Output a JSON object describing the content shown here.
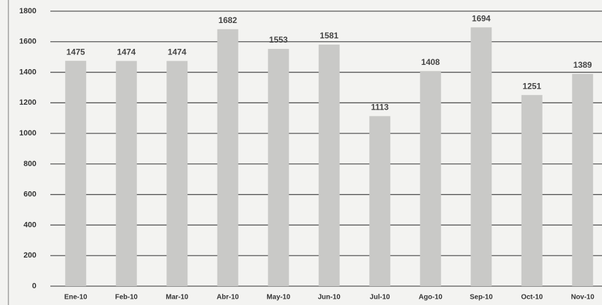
{
  "chart_data": {
    "type": "bar",
    "categories": [
      "Ene-10",
      "Feb-10",
      "Mar-10",
      "Abr-10",
      "May-10",
      "Jun-10",
      "Jul-10",
      "Ago-10",
      "Sep-10",
      "Oct-10",
      "Nov-10"
    ],
    "values": [
      1475,
      1474,
      1474,
      1682,
      1553,
      1581,
      1113,
      1408,
      1694,
      1251,
      1389
    ],
    "color": "#c9c9c7",
    "ylim": [
      0,
      1800
    ],
    "yticks": [
      0,
      200,
      400,
      600,
      800,
      1000,
      1200,
      1400,
      1600,
      1800
    ],
    "grid": true
  }
}
